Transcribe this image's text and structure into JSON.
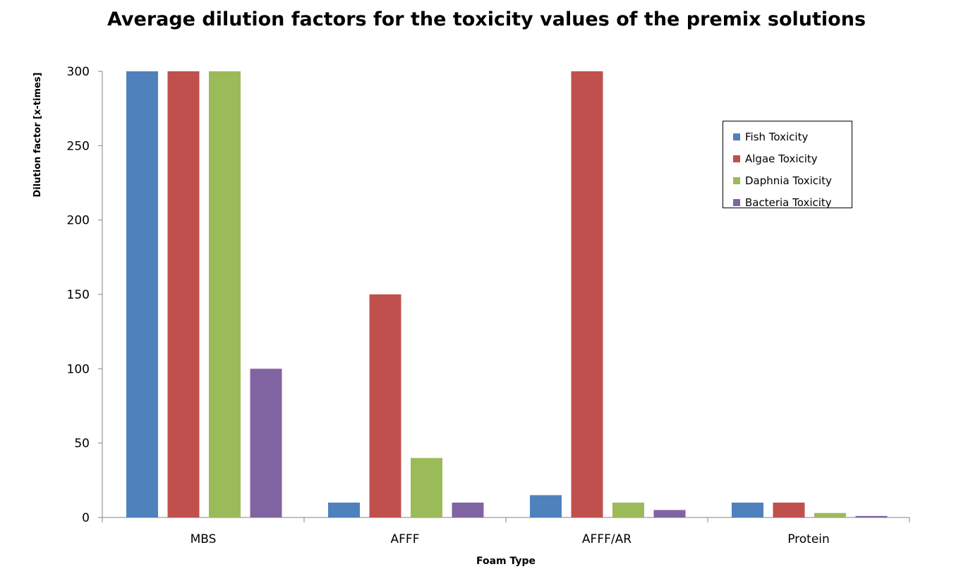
{
  "chart_data": {
    "type": "bar",
    "title": "Average dilution factors for the toxicity values of the premix solutions",
    "xlabel": "Foam Type",
    "ylabel": "Dilution factor [x-times]",
    "categories": [
      "MBS",
      "AFFF",
      "AFFF/AR",
      "Protein"
    ],
    "series": [
      {
        "name": "Fish Toxicity",
        "color": "#4F81BD",
        "values": [
          300,
          10,
          15,
          10
        ]
      },
      {
        "name": "Algae Toxicity",
        "color": "#C0504D",
        "values": [
          300,
          150,
          300,
          10
        ]
      },
      {
        "name": "Daphnia Toxicity",
        "color": "#9BBB59",
        "values": [
          300,
          40,
          10,
          3
        ]
      },
      {
        "name": "Bacteria Toxicity",
        "color": "#8064A2",
        "values": [
          100,
          10,
          5,
          1
        ]
      }
    ],
    "ylim": [
      0,
      300
    ],
    "yticks": [
      0,
      50,
      100,
      150,
      200,
      250,
      300
    ],
    "grid": false,
    "legend_position": "top-right"
  }
}
